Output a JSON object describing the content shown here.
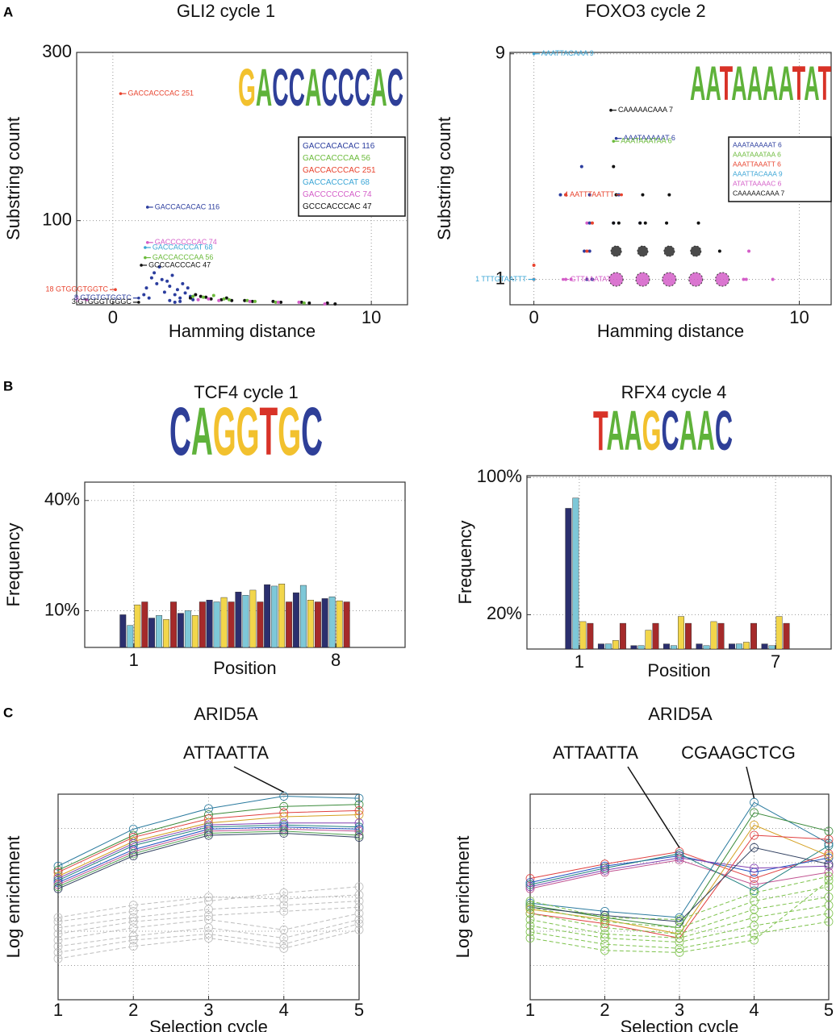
{
  "panel_labels": [
    "A",
    "B",
    "C"
  ],
  "nucleotide_colors": {
    "A": "#5fb23a",
    "C": "#2e3f98",
    "G": "#f2c12e",
    "T": "#d83227"
  },
  "chart_data": [
    {
      "type": "scatter",
      "title": "GLI2 cycle 1",
      "x_label": "Hamming distance",
      "y_label": "Substring count",
      "xlim": [
        -1.4,
        11.4
      ],
      "xticks": [
        0,
        10
      ],
      "ylim": [
        0,
        300
      ],
      "yticks": [
        100,
        300
      ],
      "grid": true,
      "logo": "GACCACCCAC",
      "series": [
        {
          "color": "#2b3d9e",
          "marker_size": 3,
          "x": [
            1.3,
            1.5,
            1.6,
            1.7,
            1.8,
            1.9,
            2.0,
            2.1,
            2.2,
            2.3,
            2.4,
            2.5,
            2.6,
            2.7,
            2.8,
            2.9,
            3.0,
            3.1,
            2.2,
            2.6,
            2.4,
            1.2,
            1.4
          ],
          "values": [
            20,
            32,
            38,
            25,
            45,
            30,
            15,
            28,
            22,
            35,
            12,
            18,
            8,
            25,
            14,
            20,
            10,
            6,
            5,
            4,
            3,
            12,
            8
          ]
        },
        {
          "color": "#111111",
          "marker_size": 3,
          "x": [
            3.0,
            3.2,
            3.4,
            3.6,
            3.8,
            4.2,
            4.4,
            4.6,
            5.1,
            5.4,
            6.2,
            6.5,
            7.3,
            7.6,
            8.3,
            8.6
          ],
          "values": [
            8,
            12,
            10,
            9,
            7,
            6,
            8,
            5,
            5,
            4,
            4,
            3,
            3,
            2,
            2,
            1
          ]
        },
        {
          "color": "#6cbb3c",
          "marker_size": 3,
          "x": [
            3.1,
            3.5,
            3.9,
            4.3,
            4.5,
            5.2,
            5.5,
            6.3,
            7.4
          ],
          "values": [
            10,
            9,
            11,
            7,
            6,
            5,
            4,
            3,
            2
          ]
        },
        {
          "color": "#d45ec8",
          "marker_size": 3,
          "x": [
            3.3,
            3.7,
            4.1,
            5.3,
            6.4,
            7.2,
            8.2
          ],
          "values": [
            6,
            7,
            5,
            4,
            3,
            3,
            1
          ]
        }
      ],
      "annotations": [
        {
          "text": "GACCACCCAC 251",
          "x": 0.3,
          "y": 251,
          "color": "#e8432e",
          "anchor": "start"
        },
        {
          "text": "GACCACACAC 116",
          "x": 1.34,
          "y": 116,
          "color": "#2b3d9e",
          "anchor": "start"
        },
        {
          "text": "GACCCCCCAC 74",
          "x": 1.34,
          "y": 74,
          "color": "#d45ec8",
          "anchor": "start"
        },
        {
          "text": "GACCACCCAT 68",
          "x": 1.25,
          "y": 68,
          "color": "#3ca6d6",
          "anchor": "start"
        },
        {
          "text": "GACCACCCAA 56",
          "x": 1.25,
          "y": 56,
          "color": "#6cbb3c",
          "anchor": "start"
        },
        {
          "text": "GCCCACCCAC 47",
          "x": 1.1,
          "y": 47,
          "color": "#111111",
          "anchor": "start"
        },
        {
          "text": "18 GTGGGTGGTC",
          "x": 0.1,
          "y": 18,
          "color": "#e8432e",
          "anchor": "end"
        },
        {
          "text": "6",
          "x": -1.0,
          "y": 6,
          "color": "#d45ec8",
          "anchor": "end"
        },
        {
          "text": "8 GTGTGTGGTC",
          "x": 1.0,
          "y": 8,
          "color": "#2b3d9e",
          "anchor": "end"
        },
        {
          "text": "3 GTGGGTGGGC",
          "x": 1.0,
          "y": 3,
          "color": "#111111",
          "anchor": "end"
        }
      ],
      "legend": [
        {
          "text": "GACCACACAC 116",
          "color": "#2b3d9e"
        },
        {
          "text": "GACCACCCAA 56",
          "color": "#6cbb3c"
        },
        {
          "text": "GACCACCCAC 251",
          "color": "#e8432e"
        },
        {
          "text": "GACCACCCAT 68",
          "color": "#3ca6d6"
        },
        {
          "text": "GACCCCCCAC 74",
          "color": "#d45ec8"
        },
        {
          "text": "GCCCACCCAC 47",
          "color": "#111111"
        }
      ]
    },
    {
      "type": "scatter",
      "title": "FOXO3 cycle 2",
      "x_label": "Hamming distance",
      "y_label": "Substring count",
      "xlim": [
        -0.9,
        11.2
      ],
      "xticks": [
        0,
        10
      ],
      "ylim": [
        0.1,
        9.05
      ],
      "yticks": [
        1,
        9
      ],
      "grid": true,
      "logo": "AATAAAATAT",
      "series": [
        {
          "color": "#d45ec8",
          "marker_size": 16,
          "x": [
            3.1,
            4.1,
            5.1,
            6.1,
            7.1
          ],
          "values": [
            1,
            1,
            1,
            1,
            1
          ]
        },
        {
          "color": "#2b2b2b",
          "marker_size": 12,
          "x": [
            3.1,
            4.1,
            5.1,
            6.1
          ],
          "values": [
            2,
            2,
            2,
            2
          ]
        },
        {
          "color": "#d45ec8",
          "marker_size": 3,
          "x": [
            2.0,
            2.2,
            2.1,
            7.9,
            8.1,
            9.0,
            1.2,
            1.4,
            2.0,
            8.0
          ],
          "values": [
            1,
            1,
            2,
            1,
            2,
            1,
            1,
            1,
            3,
            1
          ]
        },
        {
          "color": "#2b3d9e",
          "marker_size": 3,
          "x": [
            2.0,
            2.1,
            2.2,
            1.9,
            2.1,
            1.0,
            1.2,
            1.8,
            3.0,
            3.2,
            4.0,
            2.1
          ],
          "values": [
            1,
            2,
            1,
            2,
            3,
            4,
            4,
            5,
            3,
            4,
            3,
            4
          ]
        },
        {
          "color": "#111111",
          "marker_size": 3,
          "x": [
            3.0,
            3.2,
            4.0,
            4.2,
            5.0,
            5.1,
            3.1,
            4.1,
            3.0,
            6.2,
            7.0
          ],
          "values": [
            3,
            3,
            3,
            3,
            3,
            4,
            4,
            4,
            5,
            3,
            2
          ]
        },
        {
          "color": "#e8432e",
          "marker_size": 3,
          "x": [
            0,
            0,
            1.2,
            2.2,
            2.0
          ],
          "values": [
            1,
            1.5,
            4,
            3,
            2
          ]
        }
      ],
      "annotations": [
        {
          "text": "AAATTACAAA 9",
          "x": 0,
          "y": 9,
          "color": "#3ca6d6",
          "anchor": "start"
        },
        {
          "text": "CAAAAACAAA 7",
          "x": 2.9,
          "y": 7,
          "color": "#111111",
          "anchor": "start"
        },
        {
          "text": "AAATAAAAAT 6",
          "x": 3.1,
          "y": 6,
          "color": "#2b3d9e",
          "anchor": "start"
        },
        {
          "text": "AAATAAATAA 6",
          "x": 3.0,
          "y": 5.9,
          "color": "#6cbb3c",
          "anchor": "start"
        },
        {
          "text": "4 AATTTAATTT",
          "x": 3.3,
          "y": 4,
          "color": "#e8432e",
          "anchor": "end"
        },
        {
          "text": "1 TTTGTAATTT",
          "x": 0,
          "y": 1,
          "color": "#3ca6d6",
          "anchor": "end"
        },
        {
          "text": "GTTAAATAT",
          "x": 1.1,
          "y": 1,
          "color": "#d45ec8",
          "anchor": "start"
        }
      ],
      "legend": [
        {
          "text": "AAATAAAAAT 6",
          "color": "#2b3d9e"
        },
        {
          "text": "AAATAAATAA 6",
          "color": "#6cbb3c"
        },
        {
          "text": "AAATTAAATT 6",
          "color": "#e8432e"
        },
        {
          "text": "AAATTACAAA 9",
          "color": "#3ca6d6"
        },
        {
          "text": "ATATTAAAAC 6",
          "color": "#d45ec8"
        },
        {
          "text": "CAAAAACAAA 7",
          "color": "#111111"
        }
      ]
    },
    {
      "type": "bar",
      "title": "TCF4 cycle 1",
      "x_label": "Position",
      "y_label": "Frequency",
      "logo": "CAGGTGC",
      "x": [
        1,
        2,
        3,
        4,
        5,
        6,
        7,
        8
      ],
      "xlim": [
        -0.7,
        10.4
      ],
      "xticks": [
        1,
        8
      ],
      "ylim": [
        0,
        45
      ],
      "yticks": [
        {
          "value": 10,
          "label": "10%"
        },
        {
          "value": 40,
          "label": "40%"
        }
      ],
      "grid": true,
      "series": [
        {
          "color": "#2b2f6e",
          "values": [
            8.9,
            8.0,
            9.3,
            12.9,
            15.1,
            17.1,
            14.9,
            13.3
          ]
        },
        {
          "color": "#7ec8d8",
          "values": [
            6.0,
            8.7,
            10.0,
            12.4,
            14.2,
            16.7,
            16.9,
            13.8
          ]
        },
        {
          "color": "#f2d64b",
          "values": [
            11.6,
            7.6,
            8.7,
            13.6,
            15.6,
            17.3,
            12.9,
            12.7
          ]
        },
        {
          "color": "#a52a2a",
          "values": [
            12.4,
            12.4,
            12.4,
            12.4,
            12.4,
            12.4,
            12.4,
            12.4
          ]
        }
      ]
    },
    {
      "type": "bar",
      "title": "RFX4 cycle 4",
      "x_label": "Position",
      "y_label": "Frequency",
      "logo": "TAAGCAAC",
      "x": [
        1,
        2,
        3,
        4,
        5,
        6,
        7
      ],
      "xlim": [
        -0.6,
        8.7
      ],
      "xticks": [
        1,
        7
      ],
      "ylim": [
        0,
        101
      ],
      "yticks": [
        {
          "value": 20,
          "label": "20%"
        },
        {
          "value": 100,
          "label": "100%"
        }
      ],
      "grid": true,
      "series": [
        {
          "color": "#2b2f6e",
          "values": [
            82,
            3,
            2,
            3,
            3,
            3,
            3
          ]
        },
        {
          "color": "#7ec8d8",
          "values": [
            88,
            3,
            2,
            2,
            2,
            3,
            2
          ]
        },
        {
          "color": "#f2d64b",
          "values": [
            16,
            5,
            11,
            19,
            16,
            4,
            19
          ]
        },
        {
          "color": "#a52a2a",
          "values": [
            15,
            15,
            15,
            15,
            15,
            15,
            15
          ]
        }
      ]
    },
    {
      "type": "line",
      "title": "ARID5A",
      "x_label": "Selection cycle",
      "y_label": "Log enrichment",
      "x": [
        1,
        2,
        3,
        4,
        5
      ],
      "xlim": [
        1,
        5
      ],
      "xticks": [
        1,
        2,
        3,
        4,
        5
      ],
      "ylim": [
        0,
        10
      ],
      "grid": true,
      "annotations": [
        {
          "text": "ATTAATTA",
          "x": 4,
          "y": 9.9,
          "color": "#111111"
        }
      ],
      "series": [
        {
          "color": "#2a7a9e",
          "values": [
            6.5,
            8.3,
            9.3,
            9.9,
            9.8
          ]
        },
        {
          "color": "#3a8a3a",
          "values": [
            6.3,
            8.0,
            9.0,
            9.4,
            9.5
          ]
        },
        {
          "color": "#e04040",
          "values": [
            6.2,
            7.9,
            8.8,
            9.1,
            9.2
          ]
        },
        {
          "color": "#d4a020",
          "values": [
            6.0,
            7.7,
            8.6,
            8.9,
            9.0
          ]
        },
        {
          "color": "#8040b0",
          "values": [
            5.9,
            7.6,
            8.5,
            8.6,
            8.6
          ]
        },
        {
          "color": "#208080",
          "values": [
            5.8,
            7.5,
            8.4,
            8.5,
            8.4
          ]
        },
        {
          "color": "#2050c0",
          "values": [
            5.7,
            7.3,
            8.3,
            8.4,
            8.3
          ]
        },
        {
          "color": "#c05090",
          "values": [
            5.6,
            7.2,
            8.2,
            8.3,
            8.2
          ]
        },
        {
          "color": "#50a050",
          "values": [
            5.5,
            7.1,
            8.1,
            8.2,
            8.0
          ]
        },
        {
          "color": "#304060",
          "values": [
            5.4,
            7.0,
            8.0,
            8.1,
            7.9
          ]
        },
        {
          "color": "#bdbdbd",
          "dashed": true,
          "values": [
            3.8,
            4.3,
            4.8,
            5.2,
            5.5
          ]
        },
        {
          "color": "#bdbdbd",
          "dashed": true,
          "values": [
            3.5,
            4.0,
            4.4,
            4.6,
            4.8
          ]
        },
        {
          "color": "#bdbdbd",
          "dashed": true,
          "values": [
            3.2,
            3.8,
            4.1,
            4.3,
            4.5
          ]
        },
        {
          "color": "#bdbdbd",
          "dashed": true,
          "values": [
            2.9,
            3.5,
            3.9,
            3.4,
            4.2
          ]
        },
        {
          "color": "#bdbdbd",
          "dashed": true,
          "values": [
            2.6,
            3.1,
            3.5,
            3.0,
            3.9
          ]
        },
        {
          "color": "#bdbdbd",
          "dashed": true,
          "values": [
            2.3,
            2.9,
            3.2,
            2.7,
            3.7
          ]
        },
        {
          "color": "#bdbdbd",
          "dashed": true,
          "values": [
            4.0,
            4.6,
            5.0,
            4.9,
            5.1
          ]
        },
        {
          "color": "#bdbdbd",
          "dashed": true,
          "values": [
            2.0,
            2.6,
            3.0,
            2.5,
            3.4
          ]
        }
      ]
    },
    {
      "type": "line",
      "title": "ARID5A",
      "x_label": "Selection cycle",
      "y_label": "Log enrichment",
      "x": [
        1,
        2,
        3,
        4,
        5
      ],
      "xlim": [
        1,
        5
      ],
      "xticks": [
        1,
        2,
        3,
        4,
        5
      ],
      "ylim": [
        0,
        10
      ],
      "grid": true,
      "annotations": [
        {
          "text": "ATTAATTA",
          "x": 3,
          "y": 7.2,
          "color": "#111111"
        },
        {
          "text": "CGAAGCTCG",
          "x": 4,
          "y": 9.6,
          "color": "#d0222a"
        }
      ],
      "series": [
        {
          "color": "#e04040",
          "values": [
            5.9,
            6.6,
            7.2,
            5.9,
            7.1
          ]
        },
        {
          "color": "#2050c0",
          "values": [
            5.7,
            6.5,
            7.0,
            6.2,
            6.9
          ]
        },
        {
          "color": "#8040b0",
          "values": [
            5.5,
            6.3,
            6.9,
            6.4,
            6.5
          ]
        },
        {
          "color": "#c05090",
          "values": [
            5.4,
            6.2,
            6.8,
            5.6,
            6.2
          ]
        },
        {
          "color": "#208080",
          "values": [
            5.6,
            6.4,
            7.1,
            5.3,
            7.5
          ]
        },
        {
          "color": "#2a7a9e",
          "values": [
            4.7,
            4.3,
            4.0,
            9.6,
            7.6
          ]
        },
        {
          "color": "#3a8a3a",
          "values": [
            4.6,
            4.0,
            3.5,
            9.1,
            8.2
          ]
        },
        {
          "color": "#d4a020",
          "values": [
            4.4,
            3.9,
            3.2,
            8.5,
            7.0
          ]
        },
        {
          "color": "#e04040",
          "values": [
            4.2,
            3.7,
            3.0,
            8.0,
            7.8
          ]
        },
        {
          "color": "#304060",
          "values": [
            4.5,
            4.1,
            3.8,
            7.4,
            6.6
          ]
        },
        {
          "color": "#7dc24b",
          "dashed": true,
          "values": [
            4.5,
            3.8,
            3.5,
            4.8,
            5.5
          ]
        },
        {
          "color": "#7dc24b",
          "dashed": true,
          "values": [
            4.2,
            3.5,
            3.2,
            4.4,
            5.0
          ]
        },
        {
          "color": "#7dc24b",
          "dashed": true,
          "values": [
            3.9,
            3.2,
            3.0,
            4.0,
            4.6
          ]
        },
        {
          "color": "#7dc24b",
          "dashed": true,
          "values": [
            3.6,
            3.0,
            2.8,
            3.6,
            4.2
          ]
        },
        {
          "color": "#7dc24b",
          "dashed": true,
          "values": [
            3.3,
            2.7,
            2.5,
            3.2,
            3.8
          ]
        },
        {
          "color": "#7dc24b",
          "dashed": true,
          "values": [
            3.0,
            2.4,
            2.3,
            2.9,
            5.8
          ]
        },
        {
          "color": "#7dc24b",
          "dashed": true,
          "values": [
            4.8,
            4.0,
            3.9,
            5.2,
            6.0
          ]
        }
      ]
    }
  ]
}
